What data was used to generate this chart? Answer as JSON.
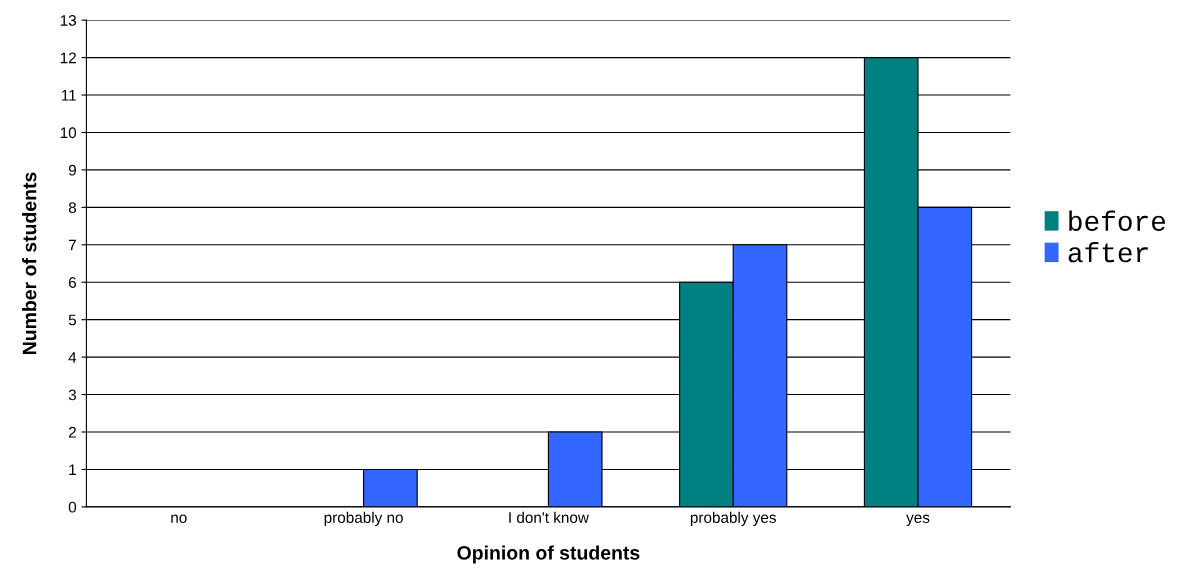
{
  "chart_data": {
    "type": "bar",
    "xlabel": "Opinion of students",
    "ylabel": "Number of students",
    "categories": [
      "no",
      "probably no",
      "I don't know",
      "probably yes",
      "yes"
    ],
    "series": [
      {
        "name": "before",
        "color": "#008080",
        "values": [
          0,
          0,
          0,
          6,
          12
        ]
      },
      {
        "name": "after",
        "color": "#3366ff",
        "values": [
          0,
          1,
          2,
          7,
          8
        ]
      }
    ],
    "ylim": [
      0,
      13
    ],
    "yticks": [
      0,
      1,
      2,
      3,
      4,
      5,
      6,
      7,
      8,
      9,
      10,
      11,
      12,
      13
    ],
    "grid": "y",
    "legend": "right"
  }
}
